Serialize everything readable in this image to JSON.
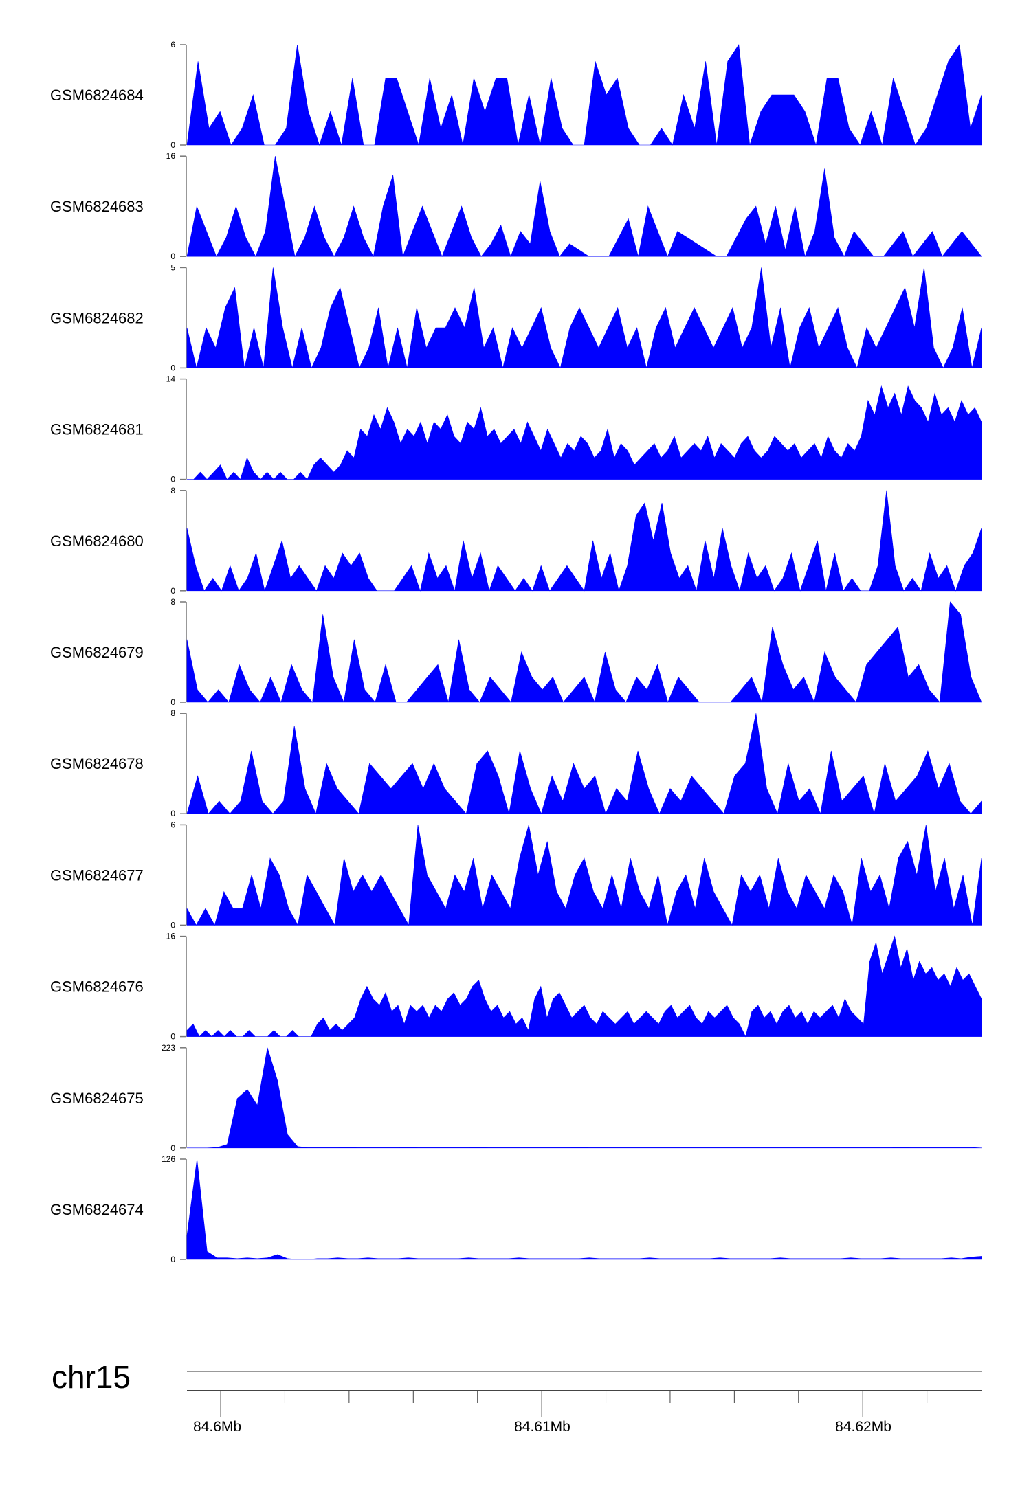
{
  "chart_data": {
    "type": "area",
    "chromosome": "chr15",
    "genomic_range_mb": [
      84.59895,
      84.6237
    ],
    "x_tick_labels": [
      {
        "pos_mb": 84.6,
        "label": "84.6Mb"
      },
      {
        "pos_mb": 84.61,
        "label": "84.61Mb"
      },
      {
        "pos_mb": 84.62,
        "label": "84.62Mb"
      }
    ],
    "minor_tick_step_mb": 0.002,
    "color": "#0000ff",
    "tracks": [
      {
        "name": "GSM6824684",
        "ymin": 0,
        "ymax": 6,
        "ymin_label": "0",
        "ymax_label": "6",
        "values": [
          0,
          5,
          1,
          2,
          0,
          1,
          3,
          0,
          0,
          1,
          6,
          2,
          0,
          2,
          0,
          4,
          0,
          0,
          4,
          4,
          2,
          0,
          4,
          1,
          3,
          0,
          4,
          2,
          4,
          4,
          0,
          3,
          0,
          4,
          1,
          0,
          0,
          5,
          3,
          4,
          1,
          0,
          0,
          1,
          0,
          3,
          1,
          5,
          0,
          5,
          6,
          0,
          2,
          3,
          3,
          3,
          2,
          0,
          4,
          4,
          1,
          0,
          2,
          0,
          4,
          2,
          0,
          1,
          3,
          5,
          6,
          1,
          3
        ]
      },
      {
        "name": "GSM6824683",
        "ymin": 0,
        "ymax": 16,
        "ymin_label": "0",
        "ymax_label": "16",
        "values": [
          0,
          8,
          4,
          0,
          3,
          8,
          3,
          0,
          4,
          16,
          8,
          0,
          3,
          8,
          3,
          0,
          3,
          8,
          3,
          0,
          8,
          13,
          0,
          4,
          8,
          4,
          0,
          4,
          8,
          3,
          0,
          2,
          5,
          0,
          4,
          2,
          12,
          4,
          0,
          2,
          1,
          0,
          0,
          0,
          3,
          6,
          0,
          8,
          4,
          0,
          4,
          3,
          2,
          1,
          0,
          0,
          3,
          6,
          8,
          2,
          8,
          1,
          8,
          0,
          4,
          14,
          3,
          0,
          4,
          2,
          0,
          0,
          2,
          4,
          0,
          2,
          4,
          0,
          2,
          4,
          2,
          0
        ]
      },
      {
        "name": "GSM6824682",
        "ymin": 0,
        "ymax": 5,
        "ymin_label": "0",
        "ymax_label": "5",
        "values": [
          2,
          0,
          2,
          1,
          3,
          4,
          0,
          2,
          0,
          5,
          2,
          0,
          2,
          0,
          1,
          3,
          4,
          2,
          0,
          1,
          3,
          0,
          2,
          0,
          3,
          1,
          2,
          2,
          3,
          2,
          4,
          1,
          2,
          0,
          2,
          1,
          2,
          3,
          1,
          0,
          2,
          3,
          2,
          1,
          2,
          3,
          1,
          2,
          0,
          2,
          3,
          1,
          2,
          3,
          2,
          1,
          2,
          3,
          1,
          2,
          5,
          1,
          3,
          0,
          2,
          3,
          1,
          2,
          3,
          1,
          0,
          2,
          1,
          2,
          3,
          4,
          2,
          5,
          1,
          0,
          1,
          3,
          0,
          2
        ]
      },
      {
        "name": "GSM6824681",
        "ymin": 0,
        "ymax": 14,
        "ymin_label": "0",
        "ymax_label": "14",
        "values": [
          0,
          0,
          1,
          0,
          1,
          2,
          0,
          1,
          0,
          3,
          1,
          0,
          1,
          0,
          1,
          0,
          0,
          1,
          0,
          2,
          3,
          2,
          1,
          2,
          4,
          3,
          7,
          6,
          9,
          7,
          10,
          8,
          5,
          7,
          6,
          8,
          5,
          8,
          7,
          9,
          6,
          5,
          8,
          7,
          10,
          6,
          7,
          5,
          6,
          7,
          5,
          8,
          6,
          4,
          7,
          5,
          3,
          5,
          4,
          6,
          5,
          3,
          4,
          7,
          3,
          5,
          4,
          2,
          3,
          4,
          5,
          3,
          4,
          6,
          3,
          4,
          5,
          4,
          6,
          3,
          5,
          4,
          3,
          5,
          6,
          4,
          3,
          4,
          6,
          5,
          4,
          5,
          3,
          4,
          5,
          3,
          6,
          4,
          3,
          5,
          4,
          6,
          11,
          9,
          13,
          10,
          12,
          9,
          13,
          11,
          10,
          8,
          12,
          9,
          10,
          8,
          11,
          9,
          10,
          8
        ]
      },
      {
        "name": "GSM6824680",
        "ymin": 0,
        "ymax": 8,
        "ymin_label": "0",
        "ymax_label": "8",
        "values": [
          5,
          2,
          0,
          1,
          0,
          2,
          0,
          1,
          3,
          0,
          2,
          4,
          1,
          2,
          1,
          0,
          2,
          1,
          3,
          2,
          3,
          1,
          0,
          0,
          0,
          1,
          2,
          0,
          3,
          1,
          2,
          0,
          4,
          1,
          3,
          0,
          2,
          1,
          0,
          1,
          0,
          2,
          0,
          1,
          2,
          1,
          0,
          4,
          1,
          3,
          0,
          2,
          6,
          7,
          4,
          7,
          3,
          1,
          2,
          0,
          4,
          1,
          5,
          2,
          0,
          3,
          1,
          2,
          0,
          1,
          3,
          0,
          2,
          4,
          0,
          3,
          0,
          1,
          0,
          0,
          2,
          8,
          2,
          0,
          1,
          0,
          3,
          1,
          2,
          0,
          2,
          3,
          5
        ]
      },
      {
        "name": "GSM6824679",
        "ymin": 0,
        "ymax": 8,
        "ymin_label": "0",
        "ymax_label": "8",
        "values": [
          5,
          1,
          0,
          1,
          0,
          3,
          1,
          0,
          2,
          0,
          3,
          1,
          0,
          7,
          2,
          0,
          5,
          1,
          0,
          3,
          0,
          0,
          1,
          2,
          3,
          0,
          5,
          1,
          0,
          2,
          1,
          0,
          4,
          2,
          1,
          2,
          0,
          1,
          2,
          0,
          4,
          1,
          0,
          2,
          1,
          3,
          0,
          2,
          1,
          0,
          0,
          0,
          0,
          1,
          2,
          0,
          6,
          3,
          1,
          2,
          0,
          4,
          2,
          1,
          0,
          3,
          4,
          5,
          6,
          2,
          3,
          1,
          0,
          8,
          7,
          2,
          0
        ]
      },
      {
        "name": "GSM6824678",
        "ymin": 0,
        "ymax": 8,
        "ymin_label": "0",
        "ymax_label": "8",
        "values": [
          0,
          3,
          0,
          1,
          0,
          1,
          5,
          1,
          0,
          1,
          7,
          2,
          0,
          4,
          2,
          1,
          0,
          4,
          3,
          2,
          3,
          4,
          2,
          4,
          2,
          1,
          0,
          4,
          5,
          3,
          0,
          5,
          2,
          0,
          3,
          1,
          4,
          2,
          3,
          0,
          2,
          1,
          5,
          2,
          0,
          2,
          1,
          3,
          2,
          1,
          0,
          3,
          4,
          8,
          2,
          0,
          4,
          1,
          2,
          0,
          5,
          1,
          2,
          3,
          0,
          4,
          1,
          2,
          3,
          5,
          2,
          4,
          1,
          0,
          1
        ]
      },
      {
        "name": "GSM6824677",
        "ymin": 0,
        "ymax": 6,
        "ymin_label": "0",
        "ymax_label": "6",
        "values": [
          1,
          0,
          1,
          0,
          2,
          1,
          1,
          3,
          1,
          4,
          3,
          1,
          0,
          3,
          2,
          1,
          0,
          4,
          2,
          3,
          2,
          3,
          2,
          1,
          0,
          6,
          3,
          2,
          1,
          3,
          2,
          4,
          1,
          3,
          2,
          1,
          4,
          6,
          3,
          5,
          2,
          1,
          3,
          4,
          2,
          1,
          3,
          1,
          4,
          2,
          1,
          3,
          0,
          2,
          3,
          1,
          4,
          2,
          1,
          0,
          3,
          2,
          3,
          1,
          4,
          2,
          1,
          3,
          2,
          1,
          3,
          2,
          0,
          4,
          2,
          3,
          1,
          4,
          5,
          3,
          6,
          2,
          4,
          1,
          3,
          0,
          4
        ]
      },
      {
        "name": "GSM6824676",
        "ymin": 0,
        "ymax": 16,
        "ymin_label": "0",
        "ymax_label": "16",
        "values": [
          1,
          2,
          0,
          1,
          0,
          1,
          0,
          1,
          0,
          0,
          1,
          0,
          0,
          0,
          1,
          0,
          0,
          1,
          0,
          0,
          0,
          2,
          3,
          1,
          2,
          1,
          2,
          3,
          6,
          8,
          6,
          5,
          7,
          4,
          5,
          2,
          5,
          4,
          5,
          3,
          5,
          4,
          6,
          7,
          5,
          6,
          8,
          9,
          6,
          4,
          5,
          3,
          4,
          2,
          3,
          1,
          6,
          8,
          3,
          6,
          7,
          5,
          3,
          4,
          5,
          3,
          2,
          4,
          3,
          2,
          3,
          4,
          2,
          3,
          4,
          3,
          2,
          4,
          5,
          3,
          4,
          5,
          3,
          2,
          4,
          3,
          4,
          5,
          3,
          2,
          0,
          4,
          5,
          3,
          4,
          2,
          4,
          5,
          3,
          4,
          2,
          4,
          3,
          4,
          5,
          3,
          6,
          4,
          3,
          2,
          12,
          15,
          10,
          13,
          16,
          11,
          14,
          9,
          12,
          10,
          11,
          9,
          10,
          8,
          11,
          9,
          10,
          8,
          6
        ]
      },
      {
        "name": "GSM6824675",
        "ymin": 0,
        "ymax": 223,
        "ymin_label": "0",
        "ymax_label": "223",
        "values": [
          0,
          0,
          0,
          1,
          8,
          110,
          130,
          95,
          223,
          150,
          30,
          3,
          1,
          1,
          1,
          1,
          2,
          1,
          1,
          1,
          1,
          1,
          2,
          1,
          1,
          1,
          1,
          1,
          1,
          2,
          1,
          1,
          1,
          1,
          1,
          1,
          1,
          1,
          1,
          2,
          1,
          1,
          1,
          1,
          1,
          1,
          1,
          1,
          1,
          1,
          1,
          1,
          1,
          1,
          1,
          1,
          1,
          1,
          1,
          1,
          1,
          1,
          1,
          1,
          1,
          1,
          1,
          1,
          1,
          1,
          1,
          2,
          1,
          1,
          1,
          1,
          1,
          1,
          1,
          0
        ]
      },
      {
        "name": "GSM6824674",
        "ymin": 0,
        "ymax": 126,
        "ymin_label": "0",
        "ymax_label": "126",
        "values": [
          30,
          126,
          10,
          2,
          2,
          1,
          2,
          1,
          2,
          6,
          1,
          0,
          0,
          1,
          1,
          2,
          1,
          1,
          2,
          1,
          1,
          1,
          2,
          1,
          1,
          1,
          1,
          1,
          2,
          1,
          1,
          1,
          1,
          2,
          1,
          1,
          1,
          1,
          1,
          1,
          2,
          1,
          1,
          1,
          1,
          1,
          2,
          1,
          1,
          1,
          1,
          1,
          1,
          2,
          1,
          1,
          1,
          1,
          1,
          2,
          1,
          1,
          1,
          1,
          1,
          1,
          2,
          1,
          1,
          1,
          2,
          1,
          1,
          1,
          1,
          1,
          2,
          1,
          3,
          4
        ]
      }
    ]
  }
}
